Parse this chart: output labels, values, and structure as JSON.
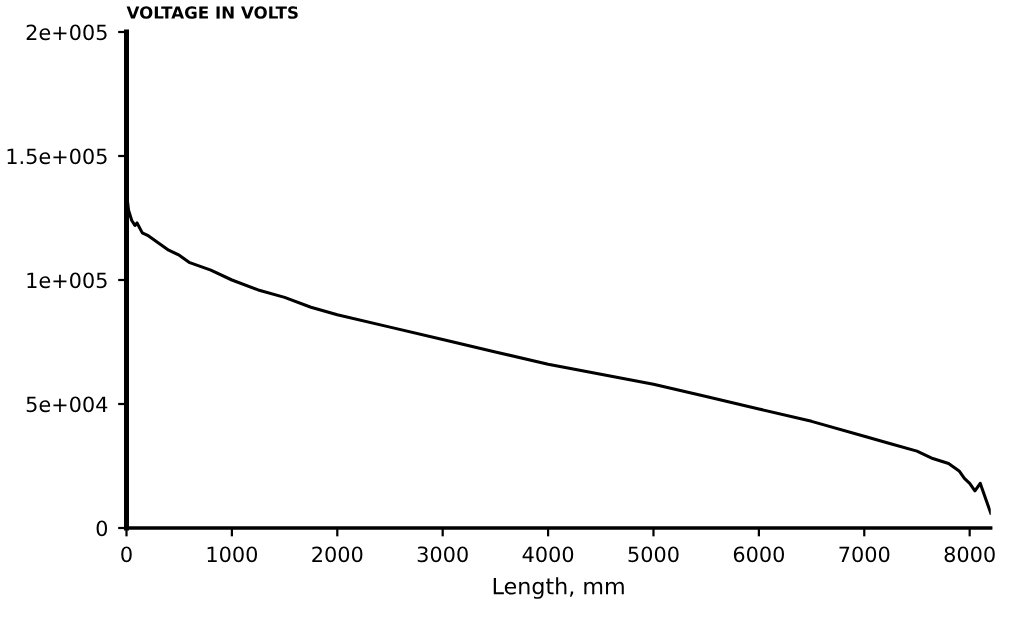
{
  "chart_data": {
    "type": "line",
    "ylabel": "VOLTAGE IN VOLTS",
    "xlabel": "Length, mm",
    "x": [
      0,
      20,
      50,
      80,
      100,
      150,
      200,
      300,
      400,
      500,
      600,
      800,
      1000,
      1250,
      1500,
      1750,
      2000,
      2500,
      3000,
      3500,
      4000,
      4500,
      5000,
      5500,
      6000,
      6500,
      7000,
      7250,
      7500,
      7650,
      7800,
      7900,
      7950,
      8000,
      8050,
      8100,
      8150,
      8200
    ],
    "series": [
      {
        "color": "#000000",
        "values": [
          135000,
          128000,
          124000,
          122000,
          123000,
          119000,
          118000,
          115000,
          112000,
          110000,
          107000,
          104000,
          100000,
          96000,
          93000,
          89000,
          86000,
          81000,
          76000,
          71000,
          66000,
          62000,
          58000,
          53000,
          48000,
          43000,
          37000,
          34000,
          31000,
          28000,
          26000,
          23000,
          20000,
          18000,
          15000,
          18000,
          12000,
          6000
        ]
      }
    ],
    "xlim": [
      0,
      8200
    ],
    "ylim": [
      0,
      200000
    ],
    "xticks": [
      0,
      1000,
      2000,
      3000,
      4000,
      5000,
      6000,
      7000,
      8000
    ],
    "yticks": [
      {
        "value": 0,
        "label": "0"
      },
      {
        "value": 50000,
        "label": "5e+004"
      },
      {
        "value": 100000,
        "label": "1e+005"
      },
      {
        "value": 150000,
        "label": "1.5e+005"
      },
      {
        "value": 200000,
        "label": "2e+005"
      }
    ],
    "grid": false,
    "line_style": "solid",
    "marker": "none"
  }
}
